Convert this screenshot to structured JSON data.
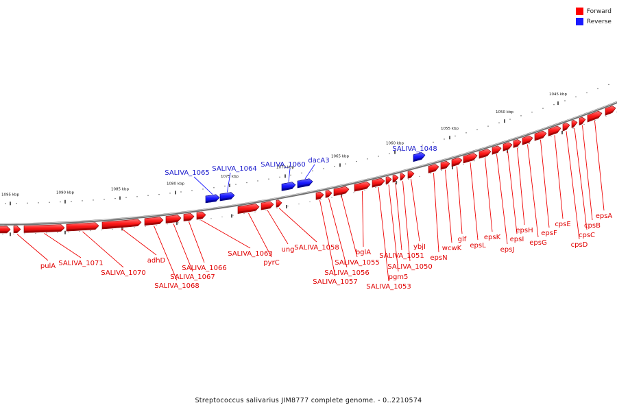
{
  "legend": {
    "forward_label": "Forward",
    "reverse_label": "Reverse",
    "forward_color": "#ff0000",
    "reverse_color": "#1a1aff"
  },
  "caption": "Streptococcus salivarius JIM8777 complete genome. - 0..2210574",
  "ticks": [
    "1095 kbp",
    "1090 kbp",
    "1085 kbp",
    "1080 kbp",
    "1075 kbp",
    "1070 kbp",
    "1065 kbp",
    "1060 kbp",
    "1055 kbp",
    "1050 kbp",
    "1045 kbp"
  ],
  "forward_genes": [
    "pulA",
    "SALIVA_1071",
    "SALIVA_1070",
    "adhD",
    "SALIVA_1068",
    "SALIVA_1067",
    "SALIVA_1066",
    "SALIVA_1063",
    "pyrC",
    "ung",
    "SALIVA_1058",
    "SALIVA_1057",
    "SALIVA_1056",
    "SALIVA_1055",
    "bglA",
    "SALIVA_1053",
    "pgm5",
    "SALIVA_1051",
    "SALIVA_1050",
    "ybjI",
    "epsN",
    "wcwK",
    "glf",
    "epsL",
    "epsK",
    "epsJ",
    "epsI",
    "epsH",
    "epsG",
    "epsF",
    "cpsE",
    "cpsD",
    "cpsC",
    "cpsB",
    "epsA"
  ],
  "reverse_genes": [
    "SALIVA_1065",
    "SALIVA_1064",
    "SALIVA_1060",
    "dacA3",
    "SALIVA_1048"
  ]
}
